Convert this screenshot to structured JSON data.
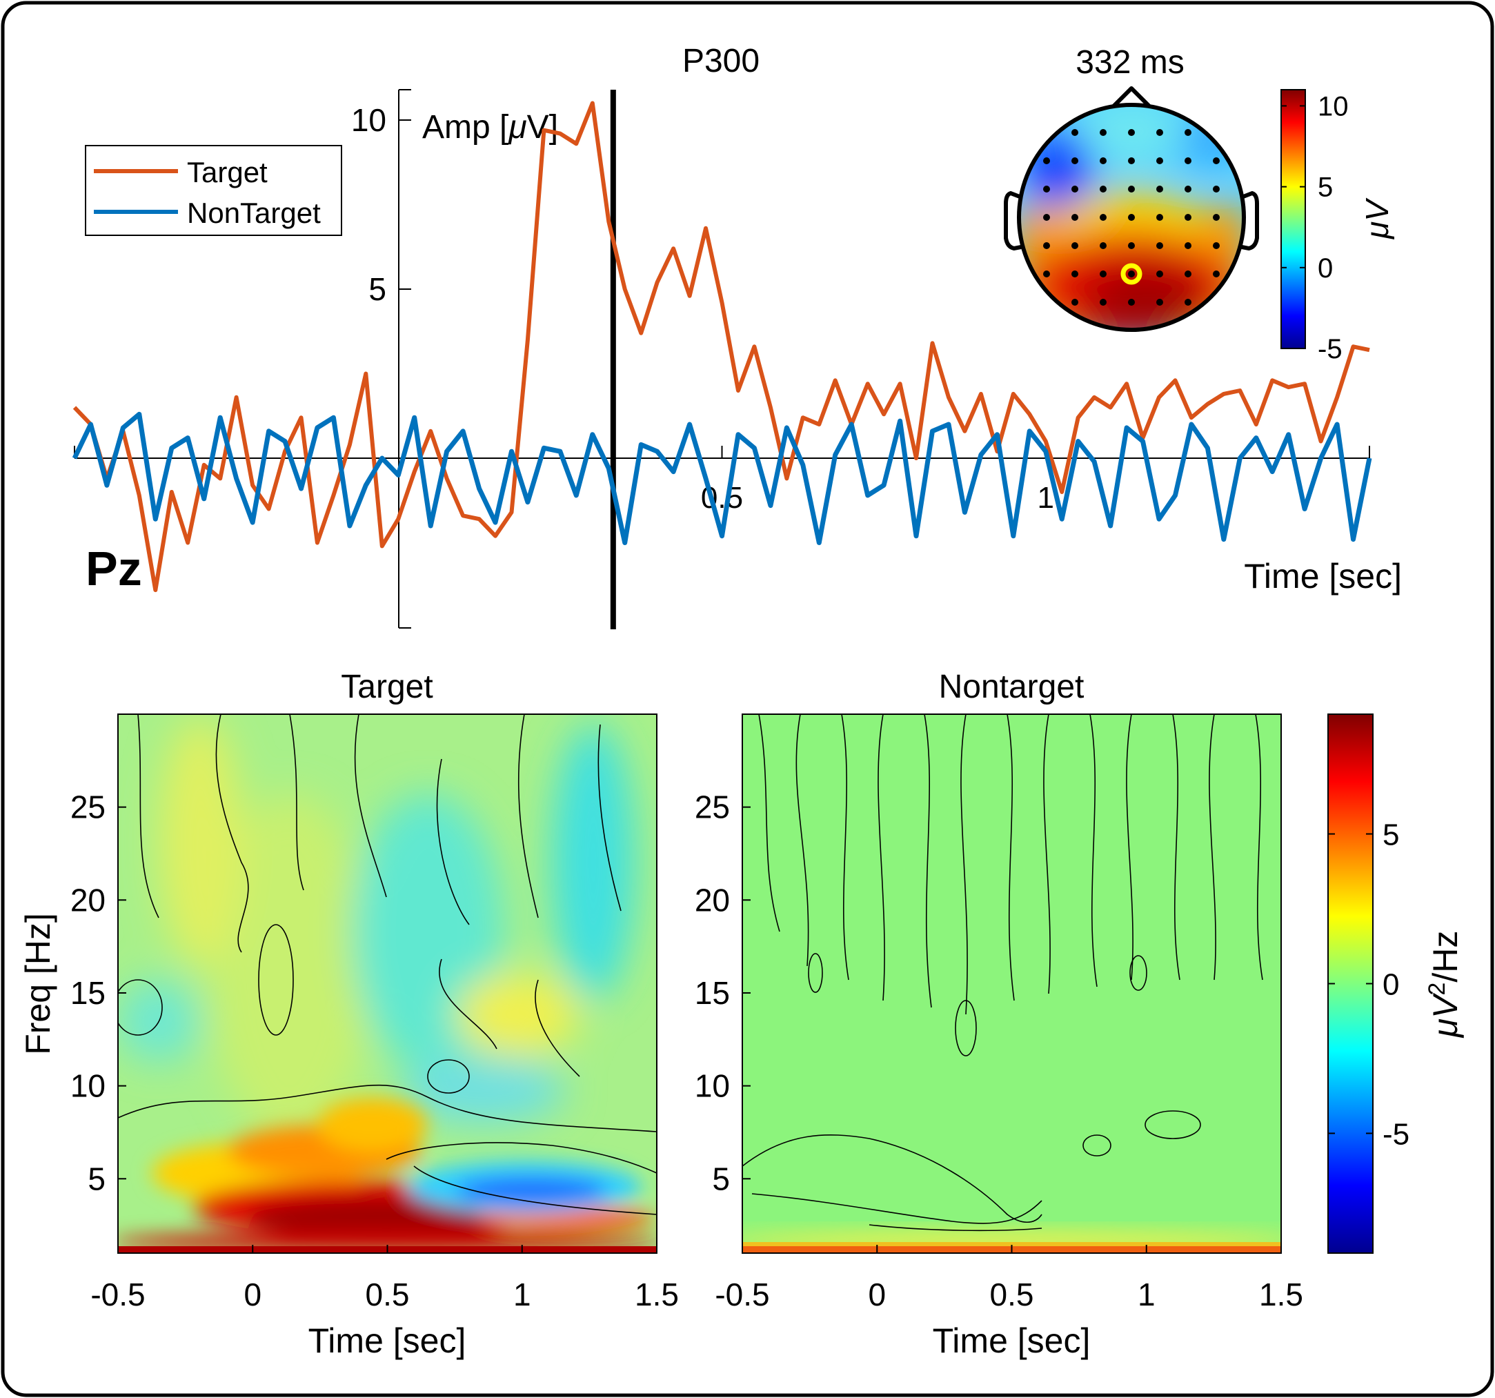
{
  "chart_data": [
    {
      "type": "line",
      "title": "P300",
      "channel_label": "Pz",
      "xlabel": "Time [sec]",
      "ylabel": "Amp [μV]",
      "ylabel_unit_symbol": "μ",
      "ylabel_parts": [
        "Amp [",
        "μ",
        "V]"
      ],
      "xlim": [
        -0.5,
        1.5
      ],
      "ylim": [
        -5,
        11
      ],
      "xticks": [
        0.5,
        1
      ],
      "xtick_labels": [
        "0.5",
        "1"
      ],
      "yticks": [
        5,
        10
      ],
      "ytick_labels": [
        "5",
        "10"
      ],
      "marker_line_x": 0.332,
      "legend": {
        "placement": "top-left",
        "entries": [
          "Target",
          "NonTarget"
        ]
      },
      "series": [
        {
          "name": "Target",
          "color": "#D95319",
          "x": [
            -0.5,
            -0.475,
            -0.45,
            -0.425,
            -0.4,
            -0.375,
            -0.35,
            -0.325,
            -0.3,
            -0.275,
            -0.25,
            -0.225,
            -0.2,
            -0.175,
            -0.15,
            -0.125,
            -0.1,
            -0.075,
            -0.05,
            -0.025,
            0,
            0.025,
            0.05,
            0.075,
            0.1,
            0.125,
            0.15,
            0.175,
            0.2,
            0.225,
            0.25,
            0.275,
            0.3,
            0.325,
            0.35,
            0.375,
            0.4,
            0.425,
            0.45,
            0.475,
            0.5,
            0.525,
            0.55,
            0.575,
            0.6,
            0.625,
            0.65,
            0.675,
            0.7,
            0.725,
            0.75,
            0.775,
            0.8,
            0.825,
            0.85,
            0.875,
            0.9,
            0.925,
            0.95,
            0.975,
            1,
            1.025,
            1.05,
            1.075,
            1.1,
            1.125,
            1.15,
            1.175,
            1.2,
            1.225,
            1.25,
            1.275,
            1.3,
            1.325,
            1.35,
            1.375,
            1.4,
            1.425,
            1.45,
            1.475,
            1.5
          ],
          "values": [
            1.5,
            1.0,
            -0.6,
            0.8,
            -1.1,
            -3.9,
            -1.0,
            -2.5,
            -0.2,
            -0.6,
            1.8,
            -0.8,
            -1.5,
            0.2,
            1.2,
            -2.5,
            -1.1,
            0.4,
            2.5,
            -2.6,
            -1.8,
            -0.4,
            0.8,
            -0.6,
            -1.7,
            -1.8,
            -2.3,
            -1.6,
            3.5,
            9.7,
            9.6,
            9.3,
            10.5,
            7.0,
            5.0,
            3.7,
            5.2,
            6.2,
            4.8,
            6.8,
            4.6,
            2.0,
            3.3,
            1.5,
            -0.6,
            1.2,
            1.0,
            2.3,
            1.0,
            2.2,
            1.3,
            2.2,
            0.0,
            3.4,
            1.8,
            0.8,
            1.9,
            0.2,
            1.9,
            1.3,
            0.5,
            -1.0,
            1.2,
            1.8,
            1.5,
            2.2,
            0.6,
            1.8,
            2.3,
            1.2,
            1.6,
            1.9,
            2.0,
            1.0,
            2.3,
            2.1,
            2.2,
            0.5,
            1.8,
            3.3,
            3.2
          ]
        },
        {
          "name": "NonTarget",
          "color": "#0072BD",
          "x": [
            -0.5,
            -0.475,
            -0.45,
            -0.425,
            -0.4,
            -0.375,
            -0.35,
            -0.325,
            -0.3,
            -0.275,
            -0.25,
            -0.225,
            -0.2,
            -0.175,
            -0.15,
            -0.125,
            -0.1,
            -0.075,
            -0.05,
            -0.025,
            0,
            0.025,
            0.05,
            0.075,
            0.1,
            0.125,
            0.15,
            0.175,
            0.2,
            0.225,
            0.25,
            0.275,
            0.3,
            0.325,
            0.35,
            0.375,
            0.4,
            0.425,
            0.45,
            0.475,
            0.5,
            0.525,
            0.55,
            0.575,
            0.6,
            0.625,
            0.65,
            0.675,
            0.7,
            0.725,
            0.75,
            0.775,
            0.8,
            0.825,
            0.85,
            0.875,
            0.9,
            0.925,
            0.95,
            0.975,
            1,
            1.025,
            1.05,
            1.075,
            1.1,
            1.125,
            1.15,
            1.175,
            1.2,
            1.225,
            1.25,
            1.275,
            1.3,
            1.325,
            1.35,
            1.375,
            1.4,
            1.425,
            1.45,
            1.475,
            1.5
          ],
          "values": [
            0.0,
            1.0,
            -0.8,
            0.9,
            1.3,
            -1.8,
            0.3,
            0.6,
            -1.2,
            1.2,
            -0.6,
            -1.9,
            0.8,
            0.5,
            -0.9,
            0.9,
            1.2,
            -2.0,
            -0.8,
            0.0,
            -0.5,
            1.2,
            -2.0,
            0.2,
            0.8,
            -0.9,
            -1.9,
            0.2,
            -1.3,
            0.3,
            0.2,
            -1.1,
            0.7,
            -0.3,
            -2.5,
            0.4,
            0.2,
            -0.4,
            1.0,
            -0.6,
            -2.3,
            0.7,
            0.3,
            -1.4,
            0.9,
            -0.2,
            -2.5,
            0.1,
            1.0,
            -1.1,
            -0.8,
            1.1,
            -2.3,
            0.8,
            1.0,
            -1.6,
            0.1,
            0.7,
            -2.3,
            0.8,
            0.2,
            -1.8,
            0.5,
            -0.1,
            -2.0,
            0.9,
            0.5,
            -1.8,
            -1.1,
            1.0,
            0.3,
            -2.4,
            0.0,
            0.6,
            -0.4,
            0.7,
            -1.5,
            0.0,
            1.0,
            -2.4,
            0.0
          ]
        }
      ]
    },
    {
      "type": "heatmap",
      "title": "332 ms",
      "subtype": "scalp topography",
      "colorbar": {
        "ticks": [
          10,
          5,
          0,
          -5
        ],
        "tick_labels": [
          "10",
          "5",
          "0",
          "-5"
        ],
        "label": "μV",
        "range": [
          -5,
          11
        ],
        "colormap": "jet"
      },
      "highlighted_electrode": "Pz"
    },
    {
      "type": "heatmap",
      "title": "Target",
      "xlabel": "Time [sec]",
      "ylabel": "Freq [Hz]",
      "xlim": [
        -0.5,
        1.5
      ],
      "ylim": [
        1,
        30
      ],
      "xticks": [
        -0.5,
        0,
        0.5,
        1,
        1.5
      ],
      "xtick_labels": [
        "-0.5",
        "0",
        "0.5",
        "1",
        "1.5"
      ],
      "yticks": [
        5,
        10,
        15,
        20,
        25
      ],
      "ytick_labels": [
        "5",
        "10",
        "15",
        "20",
        "25"
      ],
      "features": [
        {
          "t": 0.35,
          "f": 2.5,
          "value": 9.0
        },
        {
          "t": 0.1,
          "f": 5.5,
          "value": 5.5
        },
        {
          "t": 1.1,
          "f": 4.5,
          "value": -6.0
        },
        {
          "t": 0.95,
          "f": 13.5,
          "value": 3.5
        },
        {
          "t": -0.1,
          "f": 20.0,
          "value": 2.0
        }
      ]
    },
    {
      "type": "heatmap",
      "title": "Nontarget",
      "xlabel": "Time [sec]",
      "xlim": [
        -0.5,
        1.5
      ],
      "ylim": [
        1,
        30
      ],
      "xticks": [
        -0.5,
        0,
        0.5,
        1,
        1.5
      ],
      "xtick_labels": [
        "-0.5",
        "0",
        "0.5",
        "1",
        "1.5"
      ],
      "yticks": [
        5,
        10,
        15,
        20,
        25
      ],
      "ytick_labels": [
        "5",
        "10",
        "15",
        "20",
        "25"
      ],
      "features": [
        {
          "t": 0.5,
          "f": 1.3,
          "value": 4.0
        }
      ]
    },
    {
      "type": "heatmap",
      "subtype": "colorbar",
      "label": "μV²/Hz",
      "label_parts": [
        "μV",
        "2",
        "/Hz"
      ],
      "ticks": [
        5,
        0,
        -5
      ],
      "tick_labels": [
        "5",
        "0",
        "-5"
      ],
      "range": [
        -9,
        9
      ],
      "colormap": "jet"
    }
  ]
}
